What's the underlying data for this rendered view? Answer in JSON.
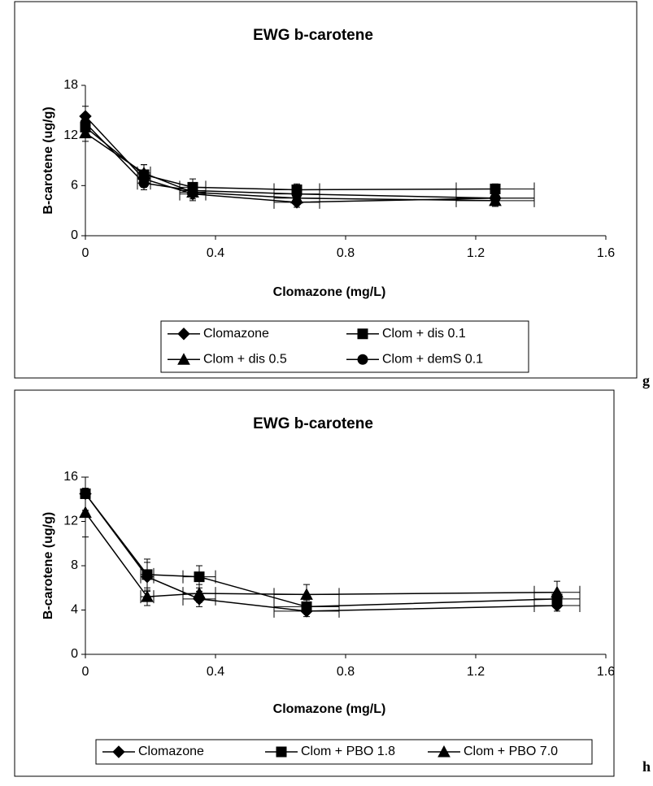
{
  "chart_data": [
    {
      "type": "line",
      "title": "EWG b-carotene",
      "x_label": "Clomazone (mg/L)",
      "y_label": "B-carotene (ug/g)",
      "panel_label": "g",
      "x": [
        0,
        0.18,
        0.33,
        0.65,
        1.26
      ],
      "x_errors": [
        0,
        0.02,
        0.04,
        0.07,
        0.12
      ],
      "xlim": [
        0,
        1.6
      ],
      "xticks": [
        0,
        0.4,
        0.8,
        1.2,
        1.6
      ],
      "ylim": [
        0,
        18
      ],
      "yticks": [
        0,
        6,
        12,
        18
      ],
      "legend_columns": 2,
      "series": [
        {
          "name": "Clomazone",
          "marker": "diamond",
          "color": "#000000",
          "values": [
            14.3,
            6.8,
            5.0,
            4.0,
            4.5
          ],
          "errors": [
            1.2,
            1.0,
            0.8,
            0.6,
            0.6
          ]
        },
        {
          "name": "Clom + dis 0.1",
          "marker": "square",
          "color": "#000000",
          "values": [
            13.0,
            7.3,
            5.8,
            5.5,
            5.6
          ],
          "errors": [
            1.2,
            1.2,
            1.0,
            0.7,
            0.6
          ]
        },
        {
          "name": "Clom + dis 0.5",
          "marker": "triangle",
          "color": "#000000",
          "values": [
            12.3,
            7.5,
            5.2,
            4.5,
            4.2
          ],
          "errors": [
            1.0,
            1.0,
            0.8,
            0.6,
            0.7
          ]
        },
        {
          "name": "Clom + demS 0.1",
          "marker": "circle",
          "color": "#000000",
          "values": [
            13.5,
            6.3,
            5.4,
            5.0,
            4.5
          ],
          "errors": [
            1.0,
            0.8,
            0.7,
            0.6,
            0.6
          ]
        }
      ]
    },
    {
      "type": "line",
      "title": "EWG b-carotene",
      "x_label": "Clomazone (mg/L)",
      "y_label": "B-carotene (ug/g)",
      "panel_label": "h",
      "x": [
        0,
        0.19,
        0.35,
        0.68,
        1.45
      ],
      "x_errors": [
        0,
        0.02,
        0.05,
        0.1,
        0.07
      ],
      "xlim": [
        0,
        1.6
      ],
      "xticks": [
        0,
        0.4,
        0.8,
        1.2,
        1.6
      ],
      "ylim": [
        0,
        16
      ],
      "yticks": [
        0,
        4,
        8,
        12,
        16
      ],
      "legend_columns": 3,
      "series": [
        {
          "name": "Clomazone",
          "marker": "diamond",
          "color": "#000000",
          "values": [
            14.5,
            7.0,
            5.0,
            3.9,
            4.4
          ],
          "errors": [
            1.5,
            1.3,
            0.7,
            0.5,
            0.5
          ]
        },
        {
          "name": "Clom + PBO 1.8",
          "marker": "square",
          "color": "#000000",
          "values": [
            14.5,
            7.2,
            7.0,
            4.3,
            5.0
          ],
          "errors": [
            1.5,
            1.4,
            1.0,
            0.6,
            0.7
          ]
        },
        {
          "name": "Clom + PBO 7.0",
          "marker": "triangle",
          "color": "#000000",
          "values": [
            12.8,
            5.2,
            5.5,
            5.4,
            5.6
          ],
          "errors": [
            2.2,
            0.8,
            0.8,
            0.9,
            1.0
          ]
        }
      ]
    }
  ]
}
